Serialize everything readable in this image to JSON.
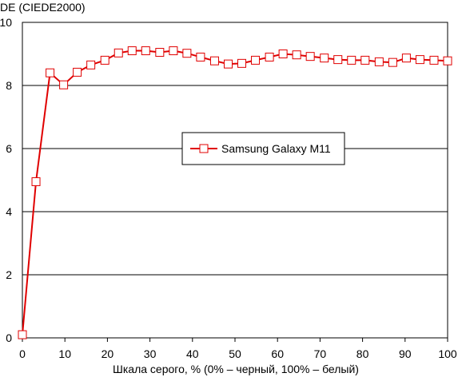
{
  "chart_data": {
    "type": "line",
    "ylabel": "DE (CIEDE2000)",
    "xlabel": "Шкала серого, % (0% – черный, 100% – белый)",
    "xlim": [
      0,
      100
    ],
    "ylim": [
      0,
      10
    ],
    "x_ticks": [
      0,
      10,
      20,
      30,
      40,
      50,
      60,
      70,
      80,
      90,
      100
    ],
    "y_ticks": [
      0,
      2,
      4,
      6,
      8,
      10
    ],
    "grid": "horizontal",
    "legend_position": "center",
    "series": [
      {
        "name": "Samsung Galaxy M11",
        "color": "#e00000",
        "marker": "square-open",
        "x": [
          0,
          3.2,
          6.5,
          9.7,
          12.9,
          16.1,
          19.4,
          22.6,
          25.8,
          29.0,
          32.3,
          35.5,
          38.7,
          41.9,
          45.2,
          48.4,
          51.6,
          54.8,
          58.1,
          61.3,
          64.5,
          67.7,
          71.0,
          74.2,
          77.4,
          80.6,
          83.9,
          87.1,
          90.3,
          93.5,
          96.8,
          100
        ],
        "y": [
          0.1,
          4.95,
          8.4,
          8.02,
          8.42,
          8.65,
          8.8,
          9.03,
          9.1,
          9.1,
          9.05,
          9.1,
          9.02,
          8.9,
          8.78,
          8.68,
          8.7,
          8.8,
          8.9,
          9.0,
          8.97,
          8.92,
          8.87,
          8.82,
          8.8,
          8.8,
          8.75,
          8.73,
          8.87,
          8.82,
          8.8,
          8.78
        ]
      }
    ]
  }
}
